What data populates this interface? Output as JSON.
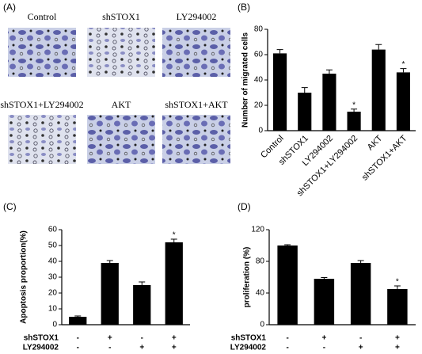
{
  "micrographs": {
    "panel": "(A)",
    "labels": [
      "Control",
      "shSTOX1",
      "LY294002",
      "shSTOX1+LY294002",
      "AKT",
      "shSTOX1+AKT"
    ]
  },
  "chart_data": [
    {
      "type": "bar",
      "panel": "(B)",
      "ylabel": "Number of migrated cells",
      "categories": [
        "Control",
        "shSTOX1",
        "LY294002",
        "shSTOX1+LY294002",
        "AKT",
        "shSTOX1+AKT"
      ],
      "values": [
        61,
        30,
        45,
        15,
        64,
        46
      ],
      "errors": [
        3,
        4,
        3,
        2,
        4,
        3
      ],
      "color": "#000000",
      "ylim": [
        0,
        80
      ],
      "yticks": [
        0,
        20,
        40,
        60,
        80
      ],
      "annotations": [
        {
          "index": 3,
          "text": "*"
        },
        {
          "index": 5,
          "text": "*"
        }
      ]
    },
    {
      "type": "bar",
      "panel": "(C)",
      "ylabel": "Apoptosis proportion(%)",
      "conditions": [
        {
          "name": "shSTOX1",
          "values": [
            "-",
            "+",
            "-",
            "+"
          ]
        },
        {
          "name": "LY294002",
          "values": [
            "-",
            "-",
            "+",
            "+"
          ]
        }
      ],
      "values": [
        5,
        39,
        25,
        52
      ],
      "errors": [
        0.5,
        1.5,
        2,
        2
      ],
      "color": "#000000",
      "ylim": [
        0,
        60
      ],
      "yticks": [
        0,
        10,
        20,
        30,
        40,
        50,
        60
      ],
      "annotations": [
        {
          "index": 3,
          "text": "*"
        }
      ]
    },
    {
      "type": "bar",
      "panel": "(D)",
      "ylabel": "proliferation (%)",
      "conditions": [
        {
          "name": "shSTOX1",
          "values": [
            "-",
            "+",
            "-",
            "+"
          ]
        },
        {
          "name": "LY294002",
          "values": [
            "-",
            "-",
            "+",
            "+"
          ]
        }
      ],
      "values": [
        100,
        58,
        78,
        45
      ],
      "errors": [
        1,
        1.5,
        3,
        4
      ],
      "color": "#000000",
      "ylim": [
        0,
        120
      ],
      "yticks": [
        0,
        40,
        80,
        120
      ],
      "annotations": [
        {
          "index": 3,
          "text": "*"
        }
      ]
    }
  ]
}
